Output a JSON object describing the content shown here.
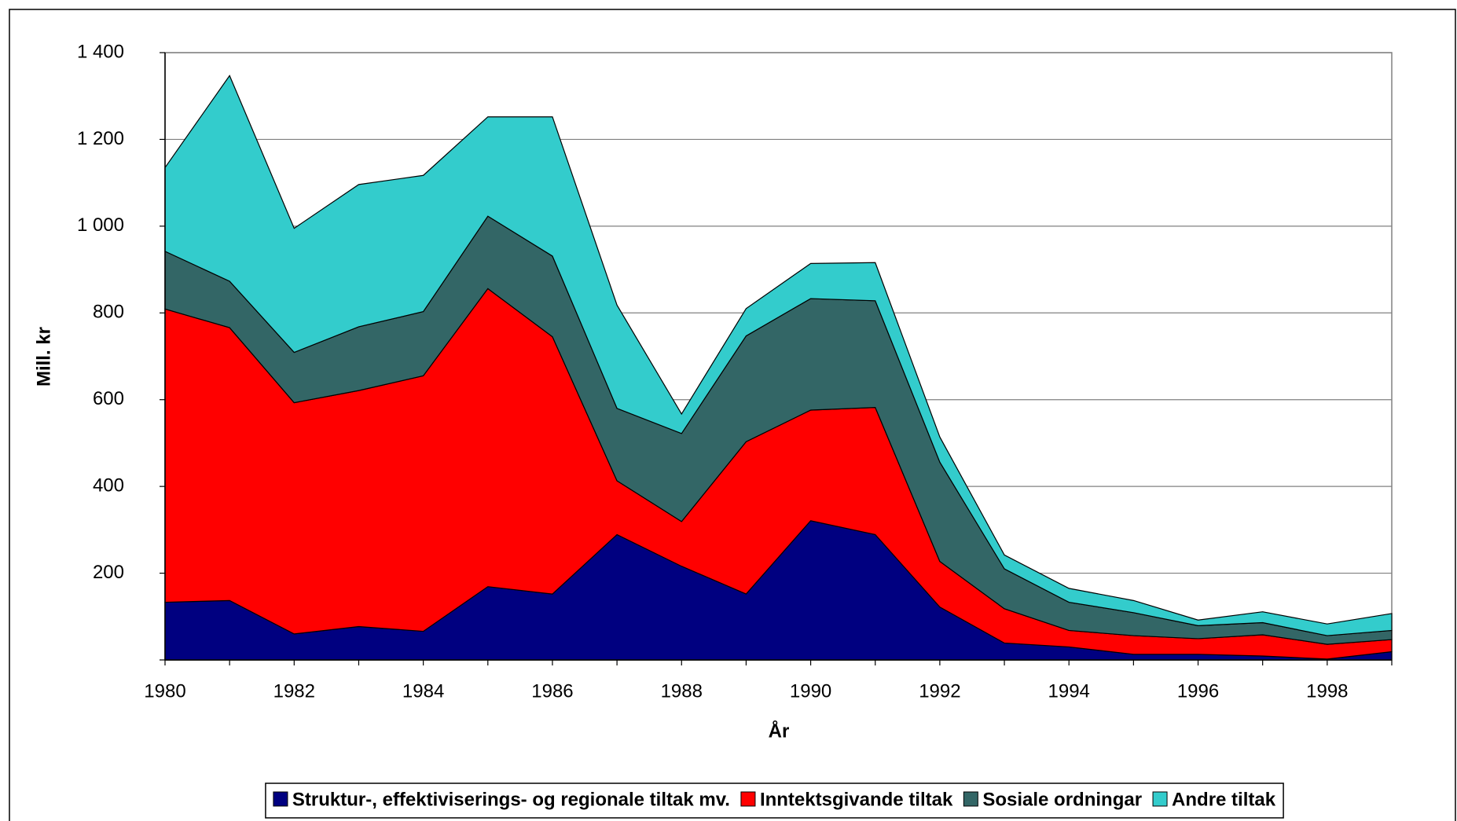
{
  "chart_data": {
    "type": "area",
    "x_label": "År",
    "y_label": "Mill. kr",
    "x": [
      1980,
      1981,
      1982,
      1983,
      1984,
      1985,
      1986,
      1987,
      1988,
      1989,
      1990,
      1991,
      1992,
      1993,
      1994,
      1995,
      1996,
      1997,
      1998,
      1999
    ],
    "xlim": [
      1980,
      1999
    ],
    "xticks": [
      1980,
      1982,
      1984,
      1986,
      1988,
      1990,
      1992,
      1994,
      1996,
      1998
    ],
    "ylim": [
      0,
      1400
    ],
    "yticks": [
      0,
      200,
      400,
      600,
      800,
      {
        "value": 1000,
        "label": "1 000"
      },
      {
        "value": 1200,
        "label": "1 200"
      },
      {
        "value": 1400,
        "label": "1 400"
      }
    ],
    "grid": true,
    "stacked": true,
    "legend": "bottom",
    "series": [
      {
        "name": "Struktur-, effektiviserings- og regionale tiltak mv.",
        "color": "#000080",
        "values": [
          133,
          137,
          60,
          77,
          66,
          169,
          152,
          289,
          216,
          152,
          321,
          289,
          122,
          39,
          30,
          13,
          13,
          9,
          2,
          19
        ]
      },
      {
        "name": "Inntektsgivande tiltak",
        "color": "#ff0000",
        "values": [
          676,
          629,
          533,
          544,
          589,
          687,
          593,
          124,
          103,
          351,
          255,
          293,
          105,
          79,
          38,
          43,
          36,
          49,
          34,
          28
        ]
      },
      {
        "name": "Sosiale ordningar",
        "color": "#336666",
        "values": [
          133,
          107,
          116,
          147,
          148,
          167,
          186,
          167,
          203,
          244,
          257,
          246,
          229,
          92,
          65,
          53,
          30,
          28,
          20,
          21
        ]
      },
      {
        "name": "Andre tiltak",
        "color": "#33cccc",
        "values": [
          193,
          474,
          286,
          328,
          314,
          229,
          321,
          238,
          45,
          63,
          81,
          88,
          58,
          32,
          32,
          28,
          13,
          25,
          27,
          39
        ]
      }
    ]
  }
}
